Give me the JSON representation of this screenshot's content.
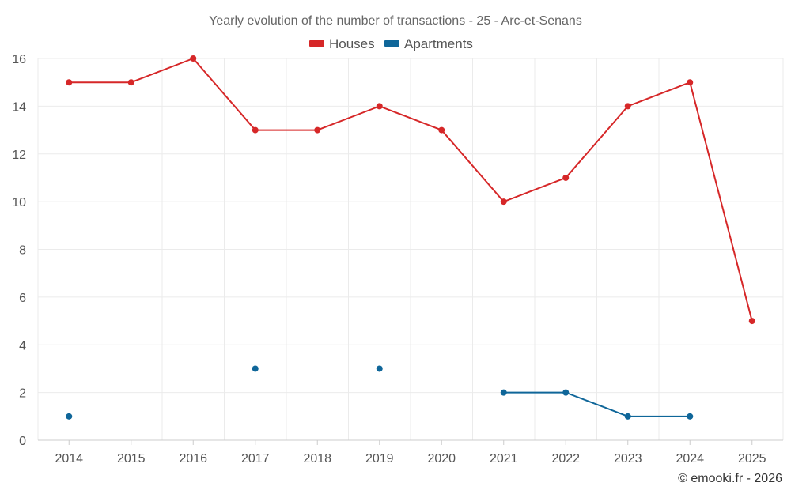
{
  "chart_data": {
    "type": "line",
    "title": "Yearly evolution of the number of transactions - 25 - Arc-et-Senans",
    "xlabel": "",
    "ylabel": "",
    "categories": [
      "2014",
      "2015",
      "2016",
      "2017",
      "2018",
      "2019",
      "2020",
      "2021",
      "2022",
      "2023",
      "2024",
      "2025"
    ],
    "ylim": [
      0,
      16
    ],
    "yticks": [
      0,
      2,
      4,
      6,
      8,
      10,
      12,
      14,
      16
    ],
    "grid": true,
    "legend_position": "top-center",
    "series": [
      {
        "name": "Houses",
        "color": "#d62728",
        "values": [
          15,
          15,
          16,
          13,
          13,
          14,
          13,
          10,
          11,
          14,
          15,
          5
        ]
      },
      {
        "name": "Apartments",
        "color": "#0f6699",
        "values": [
          1,
          null,
          null,
          3,
          null,
          3,
          null,
          2,
          2,
          1,
          1,
          null
        ]
      }
    ]
  },
  "credit": "© emooki.fr - 2026"
}
